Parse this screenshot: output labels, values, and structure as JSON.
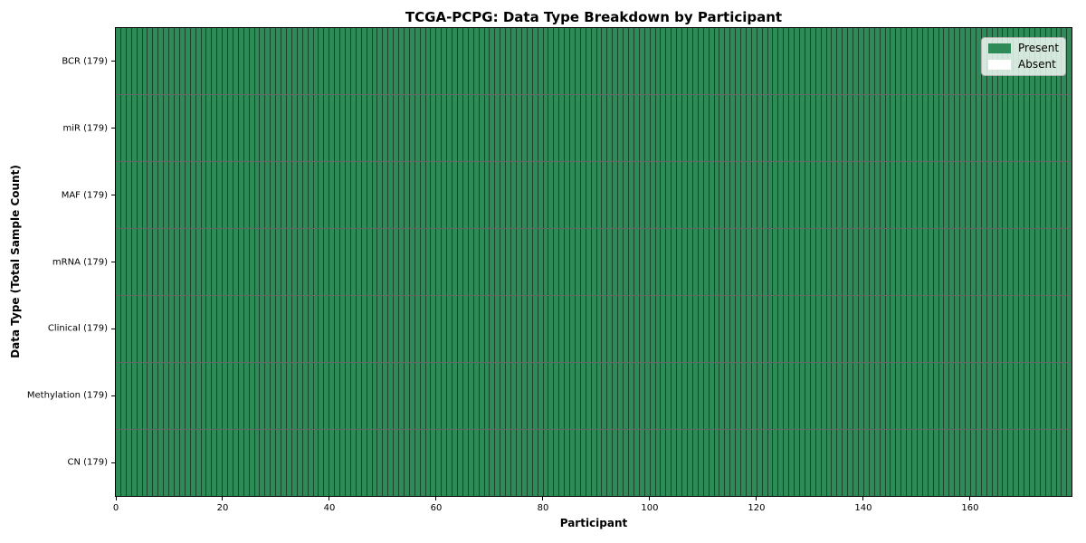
{
  "chart_data": {
    "type": "heatmap",
    "title": "TCGA-PCPG: Data Type Breakdown by Participant",
    "xlabel": "Participant",
    "ylabel": "Data Type (Total Sample Count)",
    "x_ticks": [
      0,
      20,
      40,
      60,
      80,
      100,
      120,
      140,
      160
    ],
    "xlim": [
      0,
      179
    ],
    "n_participants": 179,
    "rows": [
      {
        "data_type": "BCR",
        "label": "BCR (179)",
        "total_samples": 179,
        "present": 179,
        "absent": 0
      },
      {
        "data_type": "miR",
        "label": "miR (179)",
        "total_samples": 179,
        "present": 179,
        "absent": 0
      },
      {
        "data_type": "MAF",
        "label": "MAF (179)",
        "total_samples": 179,
        "present": 179,
        "absent": 0
      },
      {
        "data_type": "mRNA",
        "label": "mRNA (179)",
        "total_samples": 179,
        "present": 179,
        "absent": 0
      },
      {
        "data_type": "Clinical",
        "label": "Clinical (179)",
        "total_samples": 179,
        "present": 179,
        "absent": 0
      },
      {
        "data_type": "Methylation",
        "label": "Methylation (179)",
        "total_samples": 179,
        "present": 179,
        "absent": 0
      },
      {
        "data_type": "CN",
        "label": "CN (179)",
        "total_samples": 179,
        "present": 179,
        "absent": 0
      }
    ],
    "legend": {
      "position": "upper right",
      "entries": [
        {
          "label": "Present",
          "color": "#2e8b57"
        },
        {
          "label": "Absent",
          "color": "#ffffff"
        }
      ]
    },
    "colors": {
      "present": "#2e8b57",
      "absent": "#ffffff",
      "cell_edge": "rgba(0,0,0,0.5)",
      "row_edge": "rgba(0,0,0,0.6)",
      "spine": "#000000"
    },
    "grid": true
  }
}
